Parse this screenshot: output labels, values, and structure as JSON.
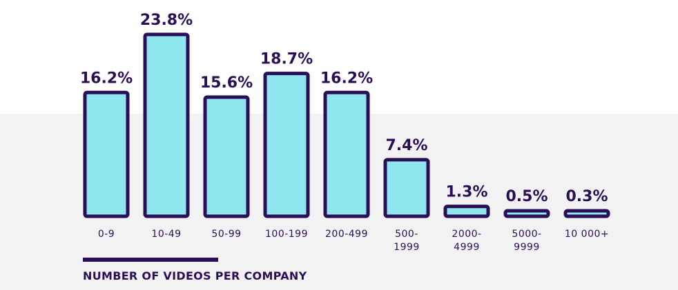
{
  "chart_data": {
    "type": "bar",
    "categories": [
      "0-9",
      "10-49",
      "50-99",
      "100-199",
      "200-499",
      "500-\n1999",
      "2000-\n4999",
      "5000-\n9999",
      "10 000+"
    ],
    "values": [
      16.2,
      23.8,
      15.6,
      18.7,
      16.2,
      7.4,
      1.3,
      0.5,
      0.3
    ],
    "value_labels": [
      "16.2%",
      "23.8%",
      "15.6%",
      "18.7%",
      "16.2%",
      "7.4%",
      "1.3%",
      "0.5%",
      "0.3%"
    ],
    "title": "",
    "xlabel": "NUMBER OF VIDEOS PER COMPANY",
    "ylabel": "",
    "ylim": [
      0,
      23.8
    ],
    "grid": false,
    "legend": "none",
    "colors": {
      "bar_fill": "#8fe6ef",
      "bar_stroke": "#2a0f57",
      "text": "#2a0f57",
      "band": "#f2f2f2"
    }
  }
}
